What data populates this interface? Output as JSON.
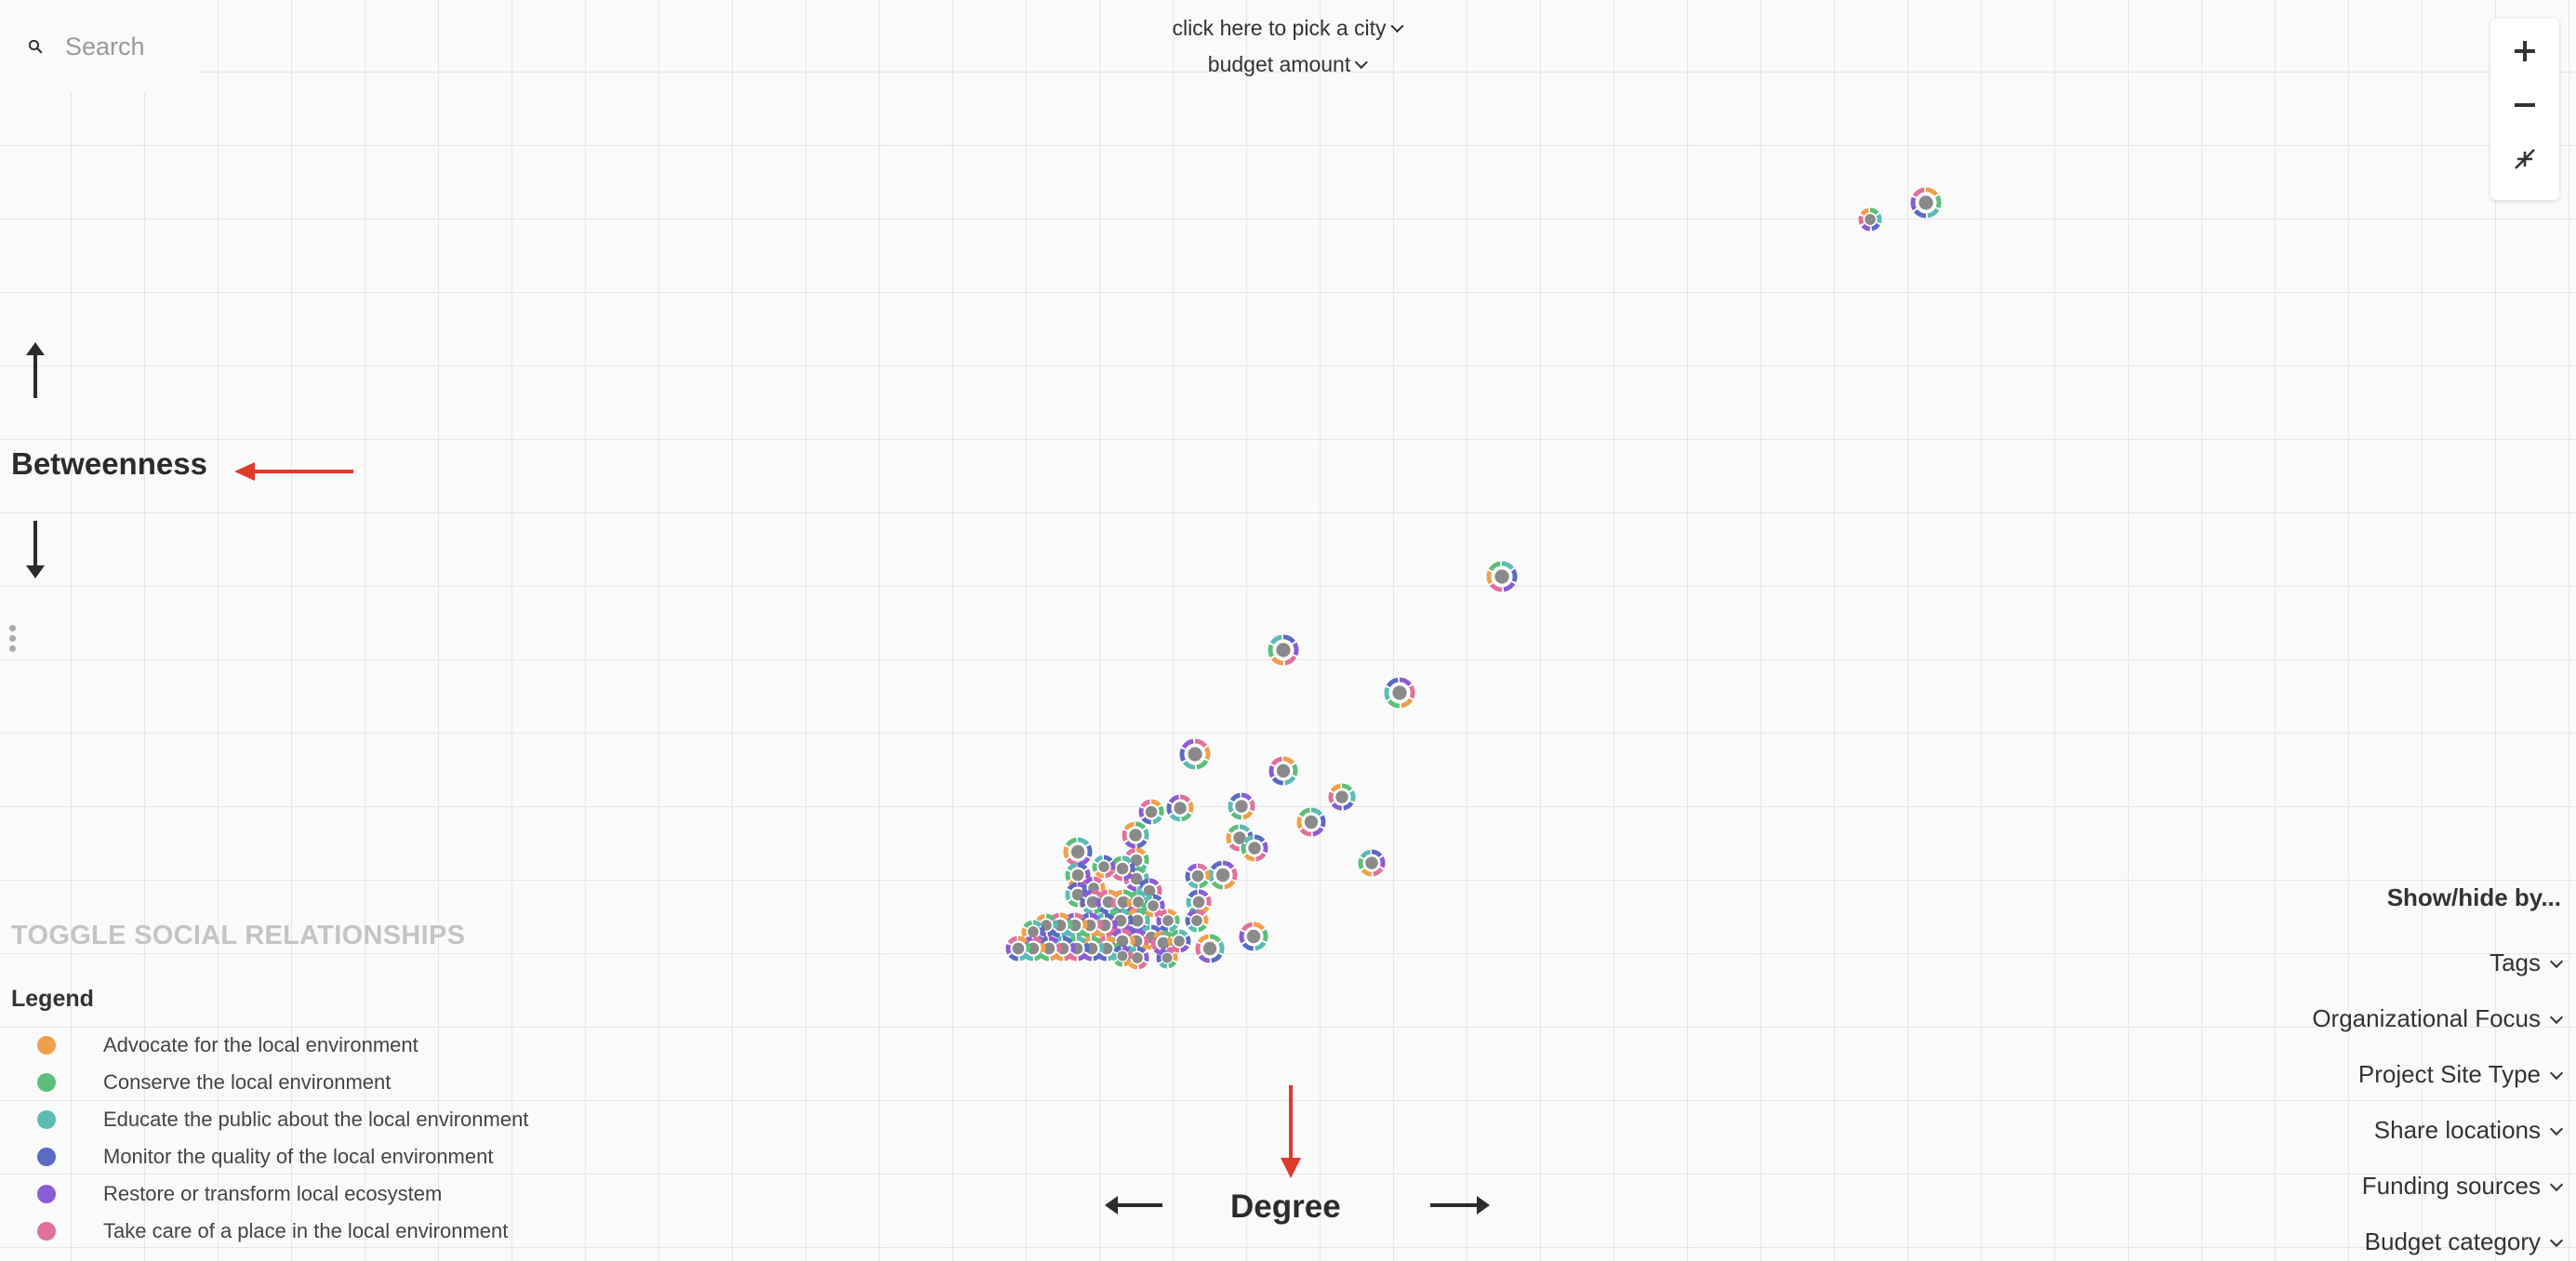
{
  "search": {
    "placeholder": "Search"
  },
  "top_controls": {
    "city": "click here to pick a city",
    "budget": "budget amount"
  },
  "axes": {
    "y_label": "Betweenness",
    "x_label": "Degree"
  },
  "toggle_label": "TOGGLE SOCIAL RELATIONSHIPS",
  "legend": {
    "title": "Legend",
    "items": [
      {
        "label": "Advocate for the local environment",
        "color": "#f0a04b"
      },
      {
        "label": "Conserve the local environment",
        "color": "#5cbf7a"
      },
      {
        "label": "Educate the public about the local environment",
        "color": "#5bbcb4"
      },
      {
        "label": "Monitor the quality of the local environment",
        "color": "#5b6ac4"
      },
      {
        "label": "Restore or transform local ecosystem",
        "color": "#8a5cd6"
      },
      {
        "label": "Take care of a place in the local environment",
        "color": "#e0719d"
      }
    ]
  },
  "filters": {
    "title": "Show/hide by...",
    "items": [
      "Tags",
      "Organizational Focus",
      "Project Site Type",
      "Share locations",
      "Funding sources",
      "Budget category"
    ]
  },
  "icons": {
    "search": "search-icon",
    "zoom_in": "plus-icon",
    "zoom_out": "minus-icon",
    "reset": "collapse-icon"
  },
  "colors": {
    "annotation_arrow": "#e03a2b",
    "node_center": "#8a8a8a"
  }
}
